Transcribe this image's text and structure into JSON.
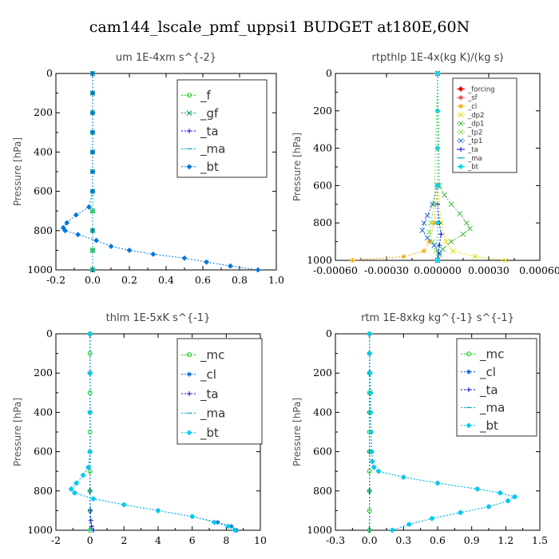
{
  "figure_title": "cam144_lscale_pmf_uppsi1  BUDGET at180E,60N",
  "chart_data": [
    {
      "type": "line",
      "title": "um   1E-4xm s^{-2}",
      "xlabel": "",
      "ylabel": "Pressure [hPa]",
      "xlim": [
        -0.2,
        1.0
      ],
      "ylim": [
        1000,
        0
      ],
      "x_ticks": [
        "-0.2",
        "0.0",
        "0.2",
        "0.4",
        "0.6",
        "0.8",
        "1.0"
      ],
      "y_ticks": [
        "0",
        "200",
        "400",
        "600",
        "800",
        "1000"
      ],
      "legend_position": "top-right",
      "legend_size": "large",
      "series": [
        {
          "name": "_f",
          "color": "#00cc00",
          "marker": "circle",
          "pressure": [
            0,
            100,
            200,
            300,
            400,
            500,
            600,
            700,
            800,
            900,
            1000
          ],
          "values": [
            0,
            0,
            0,
            0,
            0,
            0,
            0,
            0,
            0,
            0,
            0
          ]
        },
        {
          "name": "_gf",
          "color": "#009966",
          "marker": "x",
          "pressure": [
            0,
            100,
            200,
            300,
            400,
            500,
            600,
            700,
            800,
            900,
            1000
          ],
          "values": [
            0,
            0,
            0,
            0,
            0,
            0,
            0,
            0,
            0,
            0,
            0
          ]
        },
        {
          "name": "_ta",
          "color": "#0000ee",
          "marker": "plus",
          "pressure": [
            0,
            200,
            400,
            600,
            800,
            1000
          ],
          "values": [
            0,
            0,
            0,
            0,
            0,
            0
          ]
        },
        {
          "name": "_ma",
          "color": "#00aacc",
          "marker": "dash",
          "pressure": [
            0,
            200,
            400,
            600,
            800,
            1000
          ],
          "values": [
            0,
            0,
            0,
            0,
            0,
            0
          ]
        },
        {
          "name": "_bt",
          "color": "#0077dd",
          "marker": "diamond",
          "pressure": [
            0,
            100,
            200,
            300,
            400,
            500,
            600,
            680,
            720,
            760,
            785,
            800,
            820,
            850,
            880,
            900,
            920,
            940,
            960,
            980,
            1000
          ],
          "values": [
            0,
            0,
            0,
            0,
            0,
            0,
            0,
            -0.02,
            -0.09,
            -0.14,
            -0.16,
            -0.15,
            -0.08,
            0.02,
            0.1,
            0.2,
            0.33,
            0.5,
            0.62,
            0.75,
            0.9
          ]
        }
      ]
    },
    {
      "type": "line",
      "title": "rtpthlp   1E-4x(kg K)/(kg s)",
      "xlabel": "",
      "ylabel": "Pressure [hPa]",
      "xlim": [
        -0.0006,
        0.0006
      ],
      "ylim": [
        1000,
        0
      ],
      "x_ticks": [
        "-0.00060",
        "-0.00030",
        "0.000000",
        "0.00030",
        "0.00060"
      ],
      "y_ticks": [
        "0",
        "200",
        "400",
        "600",
        "800",
        "1000"
      ],
      "legend_position": "top-right",
      "legend_size": "small",
      "series": [
        {
          "name": "_forcing",
          "color": "#ee0000",
          "marker": "diamond",
          "pressure": [
            0,
            200,
            400,
            600,
            800,
            1000
          ],
          "values": [
            0,
            0,
            0,
            0,
            0,
            0
          ]
        },
        {
          "name": "_sf",
          "color": "#ff3333",
          "marker": "star",
          "pressure": [
            0,
            200,
            400,
            600,
            800,
            1000
          ],
          "values": [
            0,
            0,
            0,
            0,
            0,
            0
          ]
        },
        {
          "name": "_cl",
          "color": "#ffaa00",
          "marker": "star",
          "pressure": [
            0,
            600,
            800,
            900,
            950,
            980,
            1000
          ],
          "values": [
            0,
            0,
            -2e-05,
            -5e-05,
            -8e-05,
            -0.0002,
            -0.0005
          ]
        },
        {
          "name": "_dp2",
          "color": "#dddd00",
          "marker": "x",
          "pressure": [
            0,
            600,
            800,
            900,
            950,
            980,
            1000
          ],
          "values": [
            0,
            0,
            2e-05,
            5e-05,
            9e-05,
            0.00022,
            0.0004
          ]
        },
        {
          "name": "_dp1",
          "color": "#44bb44",
          "marker": "x",
          "pressure": [
            0,
            600,
            650,
            700,
            750,
            800,
            830,
            860,
            900,
            940,
            970,
            1000
          ],
          "values": [
            0,
            1e-05,
            4e-05,
            8e-05,
            0.00013,
            0.00017,
            0.00019,
            0.00015,
            8e-05,
            3e-05,
            1e-05,
            0
          ]
        },
        {
          "name": "_tp2",
          "color": "#88dd44",
          "marker": "x",
          "pressure": [
            0,
            700,
            800,
            850,
            900,
            950,
            1000
          ],
          "values": [
            0,
            -2e-05,
            -4e-05,
            -5e-05,
            -3e-05,
            -1e-05,
            0
          ]
        },
        {
          "name": "_tp1",
          "color": "#2266dd",
          "marker": "x",
          "pressure": [
            0,
            600,
            700,
            760,
            800,
            840,
            880,
            920,
            960,
            1000
          ],
          "values": [
            0,
            0,
            -3e-05,
            -6e-05,
            -8e-05,
            -9e-05,
            -6e-05,
            -2e-05,
            1e-05,
            0
          ]
        },
        {
          "name": "_ta",
          "color": "#0000cc",
          "marker": "plus",
          "pressure": [
            0,
            700,
            800,
            860,
            920,
            1000
          ],
          "values": [
            0,
            0,
            1e-05,
            2e-05,
            1e-05,
            0
          ]
        },
        {
          "name": "_ma",
          "color": "#00aacc",
          "marker": "dash",
          "pressure": [
            0,
            200,
            400,
            600,
            800,
            1000
          ],
          "values": [
            0,
            0,
            0,
            0,
            0,
            0
          ]
        },
        {
          "name": "_bt",
          "color": "#00ddee",
          "marker": "diamond",
          "pressure": [
            0,
            200,
            400,
            600,
            800,
            1000
          ],
          "values": [
            0,
            0,
            0,
            0,
            0,
            0
          ]
        }
      ]
    },
    {
      "type": "line",
      "title": "thlm   1E-5xK s^{-1}",
      "xlabel": "",
      "ylabel": "Pressure [hPa]",
      "xlim": [
        -2,
        10
      ],
      "ylim": [
        1000,
        0
      ],
      "x_ticks": [
        "-2",
        "0",
        "2",
        "4",
        "6",
        "8",
        "10"
      ],
      "y_ticks": [
        "0",
        "200",
        "400",
        "600",
        "800",
        "1000"
      ],
      "legend_position": "top-right",
      "legend_size": "large",
      "series": [
        {
          "name": "_mc",
          "color": "#00cc00",
          "marker": "circle",
          "pressure": [
            0,
            100,
            200,
            300,
            400,
            500,
            600,
            700,
            800,
            900,
            1000
          ],
          "values": [
            0,
            0,
            0,
            0,
            0,
            0,
            0,
            0,
            0,
            0,
            0
          ]
        },
        {
          "name": "_cl",
          "color": "#0066dd",
          "marker": "star",
          "pressure": [
            0,
            200,
            400,
            600,
            680,
            720,
            760,
            790,
            810,
            840,
            870,
            900,
            930,
            960,
            980,
            1000
          ],
          "values": [
            0,
            0,
            0,
            0,
            -0.1,
            -0.4,
            -0.8,
            -1.1,
            -0.9,
            0.2,
            2.0,
            4.0,
            6.0,
            7.5,
            8.3,
            8.6
          ]
        },
        {
          "name": "_ta",
          "color": "#0000cc",
          "marker": "plus",
          "pressure": [
            0,
            200,
            400,
            600,
            800,
            900,
            950,
            980,
            1000
          ],
          "values": [
            0,
            0,
            0,
            0,
            0,
            0.02,
            0.05,
            0.1,
            0.2
          ]
        },
        {
          "name": "_ma",
          "color": "#00aacc",
          "marker": "dash",
          "pressure": [
            0,
            200,
            400,
            600,
            800,
            1000
          ],
          "values": [
            0,
            0,
            0,
            0,
            0,
            0
          ]
        },
        {
          "name": "_bt",
          "color": "#00ccee",
          "marker": "diamond",
          "pressure": [
            0,
            200,
            400,
            600,
            680,
            720,
            760,
            790,
            810,
            840,
            870,
            900,
            930,
            960,
            980,
            1000
          ],
          "values": [
            0,
            0,
            0,
            0,
            -0.1,
            -0.4,
            -0.8,
            -1.1,
            -0.9,
            0.2,
            2.0,
            4.0,
            6.0,
            7.3,
            8.1,
            8.5
          ]
        }
      ]
    },
    {
      "type": "line",
      "title": "rtm   1E-8xkg kg^{-1} s^{-1}",
      "xlabel": "",
      "ylabel": "Pressure [hPa]",
      "xlim": [
        -0.3,
        1.5
      ],
      "ylim": [
        1000,
        0
      ],
      "x_ticks": [
        "-0.3",
        "0.0",
        "0.3",
        "0.6",
        "0.9",
        "1.2",
        "1.5"
      ],
      "y_ticks": [
        "0",
        "200",
        "400",
        "600",
        "800",
        "1000"
      ],
      "legend_position": "top-right",
      "legend_size": "large",
      "series": [
        {
          "name": "_mc",
          "color": "#00cc00",
          "marker": "circle",
          "pressure": [
            0,
            100,
            200,
            300,
            400,
            500,
            600,
            700,
            800,
            900,
            1000
          ],
          "values": [
            0,
            0,
            0,
            0,
            0,
            0,
            0,
            0,
            0,
            0,
            0
          ]
        },
        {
          "name": "_cl",
          "color": "#0066dd",
          "marker": "star",
          "pressure": [
            0,
            100,
            200,
            300,
            400,
            500,
            600,
            650,
            680,
            700,
            730,
            760,
            790,
            810,
            830,
            850,
            880,
            910,
            940,
            970,
            1000
          ],
          "values": [
            0,
            0,
            0.005,
            0.01,
            0.01,
            0.015,
            0.02,
            0.025,
            0.04,
            0.08,
            0.3,
            0.6,
            0.95,
            1.15,
            1.28,
            1.22,
            1.05,
            0.8,
            0.55,
            0.35,
            0.2
          ]
        },
        {
          "name": "_ta",
          "color": "#0000cc",
          "marker": "plus",
          "pressure": [
            0,
            200,
            400,
            600,
            800,
            1000
          ],
          "values": [
            0,
            0,
            0,
            0,
            0,
            0
          ]
        },
        {
          "name": "_ma",
          "color": "#00aacc",
          "marker": "dash",
          "pressure": [
            0,
            200,
            400,
            600,
            800,
            1000
          ],
          "values": [
            0,
            0,
            0,
            0,
            0,
            0
          ]
        },
        {
          "name": "_bt",
          "color": "#00ccee",
          "marker": "diamond",
          "pressure": [
            0,
            100,
            200,
            300,
            400,
            500,
            600,
            650,
            680,
            700,
            730,
            760,
            790,
            810,
            830,
            850,
            880,
            910,
            940,
            970,
            1000
          ],
          "values": [
            0,
            0,
            0.005,
            0.01,
            0.01,
            0.015,
            0.02,
            0.025,
            0.04,
            0.08,
            0.3,
            0.6,
            0.95,
            1.15,
            1.28,
            1.22,
            1.05,
            0.8,
            0.55,
            0.35,
            0.2
          ]
        }
      ]
    }
  ]
}
